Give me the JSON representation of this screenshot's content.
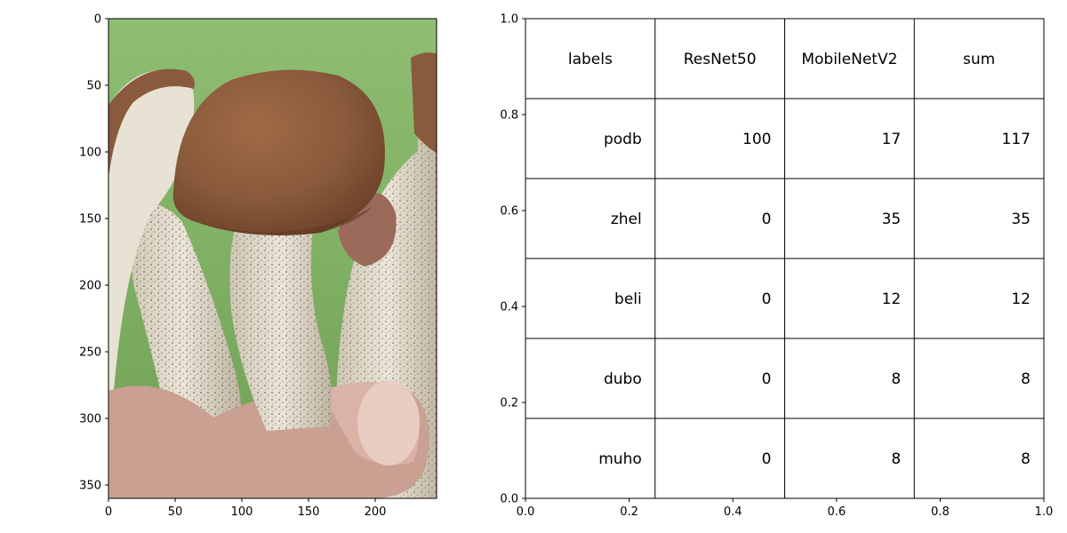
{
  "chart_data": [
    {
      "type": "image",
      "image_description": "Photo of a hand holding several brown-capped mushrooms (birch boletes) with speckled white stems against a green background",
      "xlim": [
        0,
        246
      ],
      "ylim": [
        360,
        0
      ],
      "x_ticks": [
        "0",
        "50",
        "100",
        "150",
        "200"
      ],
      "y_ticks": [
        "0",
        "50",
        "100",
        "150",
        "200",
        "250",
        "300",
        "350"
      ],
      "grid": false
    },
    {
      "type": "table",
      "xlim": [
        0,
        1
      ],
      "ylim": [
        0,
        1
      ],
      "x_ticks": [
        "0.0",
        "0.2",
        "0.4",
        "0.6",
        "0.8",
        "1.0"
      ],
      "y_ticks": [
        "0.0",
        "0.2",
        "0.4",
        "0.6",
        "0.8",
        "1.0"
      ],
      "columns": [
        "labels",
        "ResNet50",
        "MobileNetV2",
        "sum"
      ],
      "rows": [
        [
          "podb",
          "100",
          "17",
          "117"
        ],
        [
          "zhel",
          "0",
          "35",
          "35"
        ],
        [
          "beli",
          "0",
          "12",
          "12"
        ],
        [
          "dubo",
          "0",
          "8",
          "8"
        ],
        [
          "muho",
          "0",
          "8",
          "8"
        ]
      ],
      "grid": false
    }
  ],
  "colors": {
    "grass_green": "#8fbd72",
    "cap_brown": "#8a5a3c",
    "stem_white": "#e6e0d2",
    "skin": "#c9a091"
  }
}
